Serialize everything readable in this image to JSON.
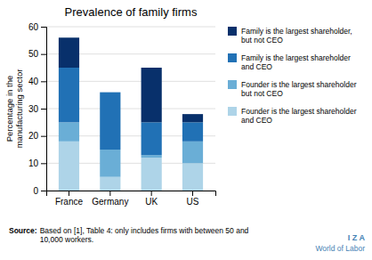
{
  "chart_data": {
    "type": "bar",
    "stacked": true,
    "title": "Prevalence of family firms",
    "categories": [
      "France",
      "Germany",
      "UK",
      "US"
    ],
    "series": [
      {
        "name": "Founder is the largest shareholder\nand CEO",
        "color": "#aed4e8",
        "values": [
          18,
          5,
          12,
          10
        ]
      },
      {
        "name": "Founder is the largest shareholder\nbut not CEO",
        "color": "#6aaed6",
        "values": [
          7,
          10,
          1,
          8
        ]
      },
      {
        "name": "Family is the largest shareholder\nand CEO",
        "color": "#2171b5",
        "values": [
          20,
          21,
          12,
          7
        ]
      },
      {
        "name": "Family is the largest shareholder,\nbut not CEO",
        "color": "#08306b",
        "values": [
          11,
          0,
          20,
          3
        ]
      }
    ],
    "ylabel": "Percentage in the\nmanufacturing sector",
    "ylim": [
      0,
      60
    ],
    "yticks": [
      0,
      10,
      20,
      30,
      40,
      50,
      60
    ],
    "grid": true,
    "legend": "right",
    "annotations": [
      "Source:",
      "Based on [1], Table 4: only includes firms with between 50 and\n10,000 workers.",
      "I Z A",
      "World of Labor"
    ]
  }
}
